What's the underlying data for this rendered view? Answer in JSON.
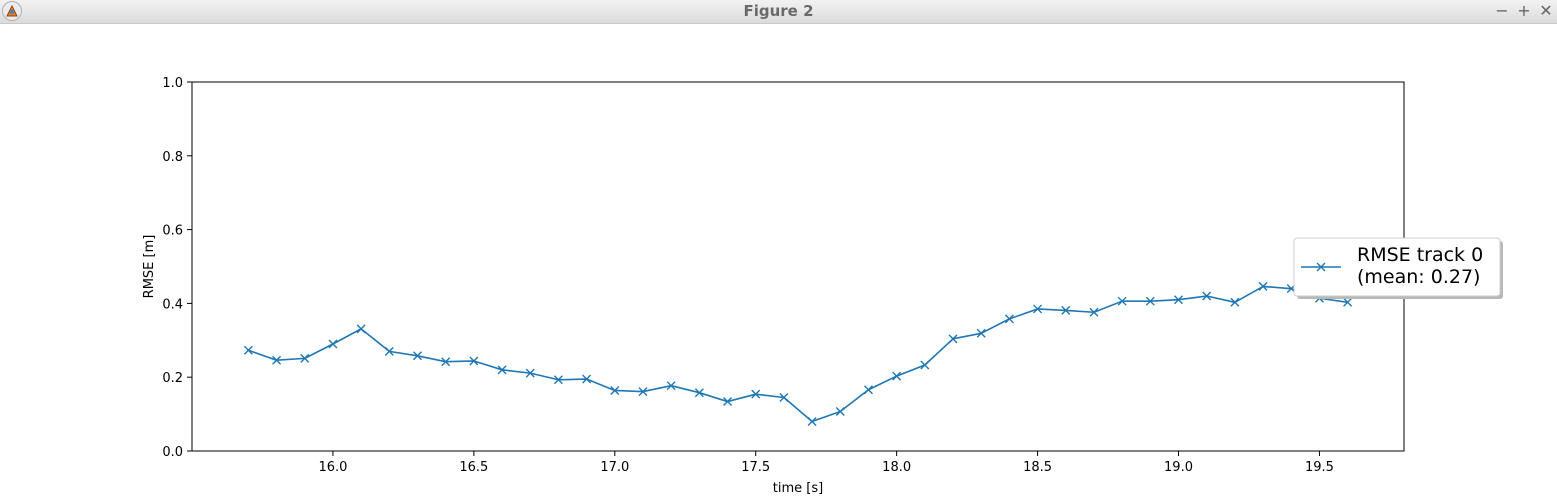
{
  "window": {
    "title": "Figure 2",
    "buttons": {
      "minimize": "−",
      "maximize": "+",
      "close": "✕"
    }
  },
  "chart_data": {
    "type": "line",
    "xlabel": "time [s]",
    "ylabel": "RMSE [m]",
    "xlim": [
      15.5,
      19.8
    ],
    "ylim": [
      0.0,
      1.0
    ],
    "xticks": [
      "16.0",
      "16.5",
      "17.0",
      "17.5",
      "18.0",
      "18.5",
      "19.0",
      "19.5"
    ],
    "yticks": [
      "0.0",
      "0.2",
      "0.4",
      "0.6",
      "0.8",
      "1.0"
    ],
    "marker": "x",
    "legend_position": "right",
    "series": [
      {
        "name": "RMSE track 0\n(mean: 0.27)",
        "color": "#1f77b4",
        "x": [
          15.7,
          15.8,
          15.9,
          16.0,
          16.1,
          16.2,
          16.3,
          16.4,
          16.5,
          16.6,
          16.7,
          16.8,
          16.9,
          17.0,
          17.1,
          17.2,
          17.3,
          17.4,
          17.5,
          17.6,
          17.7,
          17.8,
          17.9,
          18.0,
          18.1,
          18.2,
          18.3,
          18.4,
          18.5,
          18.6,
          18.7,
          18.8,
          18.9,
          19.0,
          19.1,
          19.2,
          19.3,
          19.4,
          19.5,
          19.6
        ],
        "values": [
          0.273,
          0.246,
          0.251,
          0.29,
          0.331,
          0.27,
          0.258,
          0.242,
          0.244,
          0.22,
          0.211,
          0.193,
          0.195,
          0.164,
          0.161,
          0.177,
          0.158,
          0.134,
          0.154,
          0.145,
          0.08,
          0.107,
          0.166,
          0.203,
          0.233,
          0.304,
          0.319,
          0.358,
          0.385,
          0.381,
          0.376,
          0.406,
          0.406,
          0.41,
          0.42,
          0.403,
          0.446,
          0.44,
          0.414,
          0.403
        ]
      }
    ]
  }
}
